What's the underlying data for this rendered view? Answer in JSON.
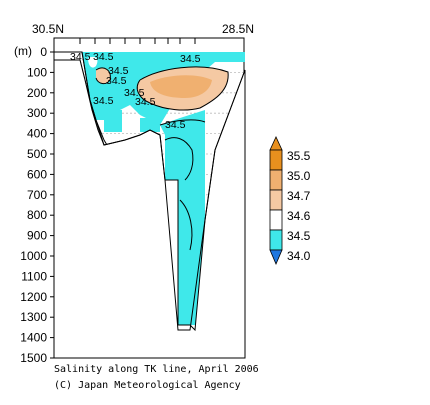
{
  "chart_data": {
    "type": "contour",
    "variable": "Salinity",
    "lat_labels": [
      "30.5N",
      "28.5N"
    ],
    "yunit": "(m)",
    "ylim": [
      0,
      1500
    ],
    "yticks": [
      0,
      100,
      200,
      300,
      400,
      500,
      600,
      700,
      800,
      900,
      1000,
      1100,
      1200,
      1300,
      1400,
      1500
    ],
    "ytick_labels": [
      "0",
      "100",
      "200",
      "300",
      "400",
      "500",
      "600",
      "700",
      "800",
      "900",
      "1000",
      "1100",
      "1200",
      "1300",
      "1400",
      "1500"
    ],
    "colorbar": {
      "levels": [
        "35.5",
        "35.0",
        "34.7",
        "34.6",
        "34.5",
        "34.0"
      ],
      "colors": [
        "#e8901e",
        "#f0b070",
        "#f5c9a3",
        "#ffffff",
        "#3fe8ea",
        "#1f77e0"
      ]
    },
    "contour_labels": [
      {
        "text": "34.5",
        "x": 0.08,
        "depth": 15
      },
      {
        "text": "34.5",
        "x": 0.17,
        "depth": 15
      },
      {
        "text": "34.5",
        "x": 0.24,
        "depth": 75
      },
      {
        "text": "34.5",
        "x": 0.22,
        "depth": 120
      },
      {
        "text": "34.5",
        "x": 0.12,
        "depth": 230
      },
      {
        "text": "34.5",
        "x": 0.33,
        "depth": 195
      },
      {
        "text": "34.5",
        "x": 0.4,
        "depth": 240
      },
      {
        "text": "34.5",
        "x": 0.6,
        "depth": 365
      },
      {
        "text": "34.5",
        "x": 0.68,
        "depth": 30
      }
    ],
    "caption_lines": [
      "Salinity along TK line, April 2006",
      "(C) Japan Meteorological Agency"
    ]
  }
}
